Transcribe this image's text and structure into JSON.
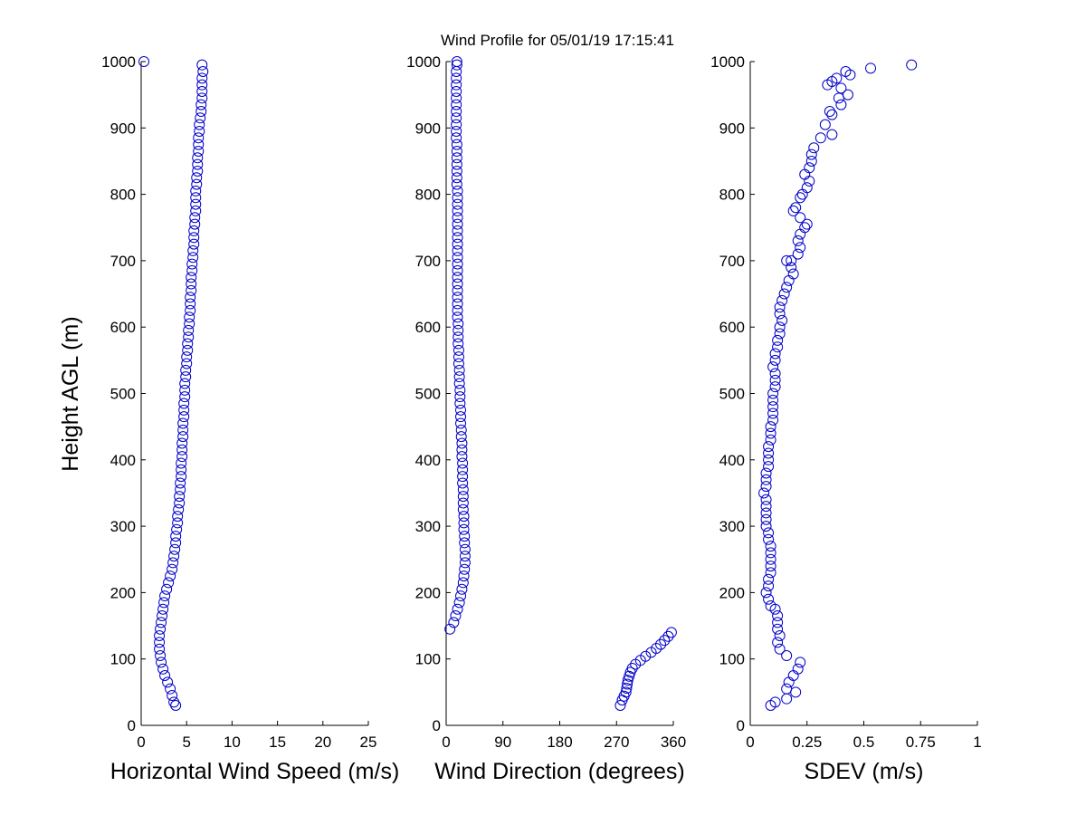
{
  "title": "Wind Profile for  05/01/19 17:15:41",
  "ylabel": "Height AGL (m)",
  "colors": {
    "marker": "#0000c8",
    "axes": "#000000",
    "background": "#ffffff"
  },
  "chart_data": [
    {
      "type": "scatter",
      "xlabel": "Horizontal Wind Speed (m/s)",
      "ylabel": "Height AGL (m)",
      "xlim": [
        0,
        25
      ],
      "ylim": [
        0,
        1000
      ],
      "xticks": [
        "0",
        "5",
        "10",
        "15",
        "20",
        "25"
      ],
      "yticks": [
        "0",
        "100",
        "200",
        "300",
        "400",
        "500",
        "600",
        "700",
        "800",
        "900",
        "1000"
      ],
      "grid": false,
      "marker": "open-circle",
      "points": [
        [
          0.3,
          1000
        ],
        [
          6.7,
          995
        ],
        [
          6.8,
          985
        ],
        [
          6.7,
          975
        ],
        [
          6.7,
          965
        ],
        [
          6.7,
          955
        ],
        [
          6.7,
          945
        ],
        [
          6.6,
          935
        ],
        [
          6.6,
          925
        ],
        [
          6.5,
          915
        ],
        [
          6.4,
          905
        ],
        [
          6.4,
          895
        ],
        [
          6.3,
          885
        ],
        [
          6.3,
          875
        ],
        [
          6.3,
          865
        ],
        [
          6.2,
          855
        ],
        [
          6.2,
          845
        ],
        [
          6.2,
          835
        ],
        [
          6.1,
          825
        ],
        [
          6.1,
          815
        ],
        [
          6.0,
          805
        ],
        [
          6.0,
          795
        ],
        [
          6.0,
          785
        ],
        [
          6.0,
          775
        ],
        [
          5.9,
          765
        ],
        [
          5.9,
          755
        ],
        [
          5.8,
          745
        ],
        [
          5.8,
          735
        ],
        [
          5.8,
          725
        ],
        [
          5.7,
          715
        ],
        [
          5.7,
          705
        ],
        [
          5.6,
          695
        ],
        [
          5.6,
          685
        ],
        [
          5.5,
          675
        ],
        [
          5.5,
          665
        ],
        [
          5.5,
          655
        ],
        [
          5.4,
          645
        ],
        [
          5.4,
          635
        ],
        [
          5.4,
          625
        ],
        [
          5.3,
          615
        ],
        [
          5.3,
          605
        ],
        [
          5.2,
          595
        ],
        [
          5.2,
          585
        ],
        [
          5.1,
          575
        ],
        [
          5.1,
          565
        ],
        [
          5.0,
          555
        ],
        [
          5.0,
          545
        ],
        [
          4.9,
          535
        ],
        [
          4.9,
          525
        ],
        [
          4.8,
          515
        ],
        [
          4.8,
          505
        ],
        [
          4.8,
          495
        ],
        [
          4.7,
          485
        ],
        [
          4.7,
          475
        ],
        [
          4.7,
          465
        ],
        [
          4.6,
          455
        ],
        [
          4.6,
          445
        ],
        [
          4.6,
          435
        ],
        [
          4.5,
          425
        ],
        [
          4.5,
          415
        ],
        [
          4.5,
          405
        ],
        [
          4.4,
          395
        ],
        [
          4.4,
          385
        ],
        [
          4.4,
          375
        ],
        [
          4.3,
          365
        ],
        [
          4.3,
          355
        ],
        [
          4.2,
          345
        ],
        [
          4.2,
          335
        ],
        [
          4.1,
          325
        ],
        [
          4.0,
          315
        ],
        [
          4.0,
          305
        ],
        [
          3.9,
          295
        ],
        [
          3.8,
          285
        ],
        [
          3.8,
          275
        ],
        [
          3.7,
          265
        ],
        [
          3.6,
          255
        ],
        [
          3.5,
          245
        ],
        [
          3.4,
          235
        ],
        [
          3.2,
          225
        ],
        [
          3.0,
          215
        ],
        [
          2.8,
          205
        ],
        [
          2.6,
          195
        ],
        [
          2.5,
          185
        ],
        [
          2.4,
          175
        ],
        [
          2.3,
          165
        ],
        [
          2.2,
          155
        ],
        [
          2.1,
          145
        ],
        [
          2.0,
          135
        ],
        [
          2.0,
          125
        ],
        [
          2.0,
          115
        ],
        [
          2.1,
          105
        ],
        [
          2.2,
          95
        ],
        [
          2.4,
          85
        ],
        [
          2.6,
          75
        ],
        [
          2.9,
          65
        ],
        [
          3.2,
          55
        ],
        [
          3.4,
          45
        ],
        [
          3.6,
          35
        ],
        [
          3.8,
          30
        ]
      ]
    },
    {
      "type": "scatter",
      "xlabel": "Wind Direction (degrees)",
      "xlim": [
        0,
        360
      ],
      "ylim": [
        0,
        1000
      ],
      "xticks": [
        "0",
        "90",
        "180",
        "270",
        "360"
      ],
      "yticks": [
        "0",
        "100",
        "200",
        "300",
        "400",
        "500",
        "600",
        "700",
        "800",
        "900",
        "1000"
      ],
      "grid": false,
      "marker": "open-circle",
      "points": [
        [
          17,
          1000
        ],
        [
          17,
          995
        ],
        [
          16,
          985
        ],
        [
          16,
          975
        ],
        [
          16,
          965
        ],
        [
          16,
          955
        ],
        [
          16,
          945
        ],
        [
          16,
          935
        ],
        [
          16,
          925
        ],
        [
          16,
          915
        ],
        [
          16,
          905
        ],
        [
          16,
          895
        ],
        [
          16,
          885
        ],
        [
          17,
          875
        ],
        [
          17,
          865
        ],
        [
          17,
          855
        ],
        [
          17,
          845
        ],
        [
          17,
          835
        ],
        [
          17,
          825
        ],
        [
          17,
          815
        ],
        [
          18,
          805
        ],
        [
          18,
          795
        ],
        [
          18,
          785
        ],
        [
          18,
          775
        ],
        [
          18,
          765
        ],
        [
          18,
          755
        ],
        [
          18,
          745
        ],
        [
          18,
          735
        ],
        [
          18,
          725
        ],
        [
          18,
          715
        ],
        [
          18,
          705
        ],
        [
          18,
          695
        ],
        [
          18,
          685
        ],
        [
          18,
          675
        ],
        [
          18,
          665
        ],
        [
          18,
          655
        ],
        [
          18,
          645
        ],
        [
          18,
          635
        ],
        [
          18,
          625
        ],
        [
          18,
          615
        ],
        [
          19,
          605
        ],
        [
          19,
          595
        ],
        [
          19,
          585
        ],
        [
          19,
          575
        ],
        [
          20,
          565
        ],
        [
          20,
          555
        ],
        [
          20,
          545
        ],
        [
          21,
          535
        ],
        [
          21,
          525
        ],
        [
          21,
          515
        ],
        [
          22,
          505
        ],
        [
          22,
          495
        ],
        [
          22,
          485
        ],
        [
          23,
          475
        ],
        [
          23,
          465
        ],
        [
          23,
          455
        ],
        [
          24,
          445
        ],
        [
          24,
          435
        ],
        [
          25,
          425
        ],
        [
          25,
          415
        ],
        [
          25,
          405
        ],
        [
          26,
          395
        ],
        [
          26,
          385
        ],
        [
          26,
          375
        ],
        [
          26,
          365
        ],
        [
          27,
          355
        ],
        [
          27,
          345
        ],
        [
          27,
          335
        ],
        [
          27,
          325
        ],
        [
          28,
          315
        ],
        [
          28,
          305
        ],
        [
          28,
          295
        ],
        [
          29,
          285
        ],
        [
          29,
          275
        ],
        [
          30,
          265
        ],
        [
          30,
          255
        ],
        [
          30,
          245
        ],
        [
          29,
          235
        ],
        [
          28,
          225
        ],
        [
          27,
          215
        ],
        [
          25,
          205
        ],
        [
          23,
          195
        ],
        [
          21,
          185
        ],
        [
          18,
          175
        ],
        [
          15,
          165
        ],
        [
          12,
          155
        ],
        [
          6,
          145
        ],
        [
          357,
          140
        ],
        [
          352,
          134
        ],
        [
          346,
          128
        ],
        [
          340,
          122
        ],
        [
          333,
          116
        ],
        [
          325,
          110
        ],
        [
          316,
          104
        ],
        [
          308,
          98
        ],
        [
          300,
          92
        ],
        [
          295,
          86
        ],
        [
          292,
          80
        ],
        [
          290,
          74
        ],
        [
          288,
          68
        ],
        [
          287,
          62
        ],
        [
          286,
          56
        ],
        [
          285,
          50
        ],
        [
          282,
          44
        ],
        [
          279,
          38
        ],
        [
          276,
          30
        ]
      ]
    },
    {
      "type": "scatter",
      "xlabel": "SDEV  (m/s)",
      "xlim": [
        0,
        1
      ],
      "ylim": [
        0,
        1000
      ],
      "xticks": [
        "0",
        "0.25",
        "0.5",
        "0.75",
        "1"
      ],
      "yticks": [
        "0",
        "100",
        "200",
        "300",
        "400",
        "500",
        "600",
        "700",
        "800",
        "900",
        "1000"
      ],
      "grid": false,
      "marker": "open-circle",
      "points": [
        [
          0.71,
          995
        ],
        [
          0.53,
          990
        ],
        [
          0.42,
          985
        ],
        [
          0.38,
          975
        ],
        [
          0.44,
          980
        ],
        [
          0.34,
          965
        ],
        [
          0.36,
          970
        ],
        [
          0.4,
          960
        ],
        [
          0.43,
          950
        ],
        [
          0.39,
          945
        ],
        [
          0.4,
          935
        ],
        [
          0.35,
          925
        ],
        [
          0.36,
          920
        ],
        [
          0.33,
          905
        ],
        [
          0.31,
          885
        ],
        [
          0.36,
          890
        ],
        [
          0.28,
          870
        ],
        [
          0.27,
          860
        ],
        [
          0.27,
          850
        ],
        [
          0.26,
          840
        ],
        [
          0.24,
          830
        ],
        [
          0.26,
          820
        ],
        [
          0.25,
          810
        ],
        [
          0.23,
          800
        ],
        [
          0.22,
          795
        ],
        [
          0.2,
          780
        ],
        [
          0.19,
          775
        ],
        [
          0.22,
          765
        ],
        [
          0.25,
          755
        ],
        [
          0.24,
          750
        ],
        [
          0.22,
          740
        ],
        [
          0.21,
          730
        ],
        [
          0.22,
          720
        ],
        [
          0.21,
          710
        ],
        [
          0.18,
          700
        ],
        [
          0.16,
          700
        ],
        [
          0.18,
          690
        ],
        [
          0.19,
          680
        ],
        [
          0.17,
          670
        ],
        [
          0.16,
          660
        ],
        [
          0.15,
          650
        ],
        [
          0.14,
          640
        ],
        [
          0.13,
          630
        ],
        [
          0.13,
          620
        ],
        [
          0.14,
          610
        ],
        [
          0.13,
          600
        ],
        [
          0.13,
          590
        ],
        [
          0.12,
          580
        ],
        [
          0.12,
          570
        ],
        [
          0.11,
          560
        ],
        [
          0.11,
          550
        ],
        [
          0.1,
          540
        ],
        [
          0.11,
          530
        ],
        [
          0.11,
          520
        ],
        [
          0.11,
          510
        ],
        [
          0.1,
          500
        ],
        [
          0.1,
          490
        ],
        [
          0.1,
          480
        ],
        [
          0.1,
          470
        ],
        [
          0.1,
          460
        ],
        [
          0.09,
          450
        ],
        [
          0.09,
          440
        ],
        [
          0.09,
          430
        ],
        [
          0.08,
          420
        ],
        [
          0.08,
          410
        ],
        [
          0.08,
          400
        ],
        [
          0.08,
          390
        ],
        [
          0.07,
          380
        ],
        [
          0.07,
          370
        ],
        [
          0.07,
          360
        ],
        [
          0.06,
          350
        ],
        [
          0.07,
          340
        ],
        [
          0.07,
          330
        ],
        [
          0.07,
          320
        ],
        [
          0.07,
          310
        ],
        [
          0.07,
          300
        ],
        [
          0.08,
          290
        ],
        [
          0.08,
          280
        ],
        [
          0.09,
          270
        ],
        [
          0.09,
          260
        ],
        [
          0.09,
          250
        ],
        [
          0.09,
          240
        ],
        [
          0.09,
          230
        ],
        [
          0.08,
          220
        ],
        [
          0.08,
          210
        ],
        [
          0.07,
          200
        ],
        [
          0.08,
          190
        ],
        [
          0.09,
          180
        ],
        [
          0.11,
          175
        ],
        [
          0.12,
          165
        ],
        [
          0.12,
          155
        ],
        [
          0.12,
          145
        ],
        [
          0.13,
          135
        ],
        [
          0.12,
          125
        ],
        [
          0.13,
          115
        ],
        [
          0.16,
          105
        ],
        [
          0.22,
          95
        ],
        [
          0.21,
          85
        ],
        [
          0.19,
          75
        ],
        [
          0.17,
          65
        ],
        [
          0.16,
          55
        ],
        [
          0.2,
          50
        ],
        [
          0.16,
          40
        ],
        [
          0.11,
          35
        ],
        [
          0.09,
          30
        ]
      ]
    }
  ]
}
